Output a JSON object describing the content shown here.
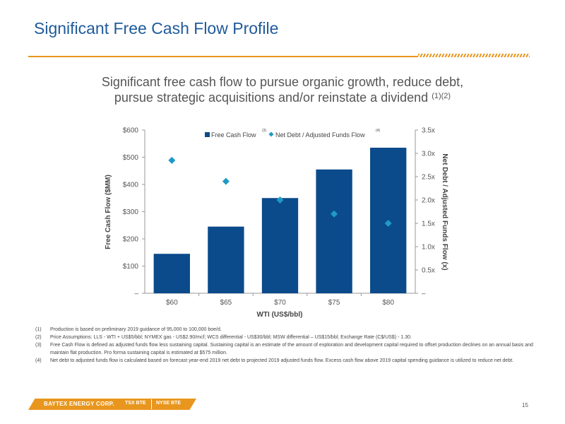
{
  "page": {
    "title": "Significant Free Cash Flow Profile",
    "headline_line1": "Significant free cash flow to pursue organic growth, reduce debt,",
    "headline_line2": "pursue strategic acquisitions and/or reinstate a dividend",
    "headline_sup": "(1)(2)",
    "page_number": "15"
  },
  "footer": {
    "company": "BAYTEX ENERGY CORP.",
    "ticker_tsx": "TSX BTE",
    "ticker_nyse": "NYSE BTE",
    "accent_color": "#E8961E"
  },
  "footnotes": [
    {
      "num": "(1)",
      "text": "Production is based on preliminary 2019 guidance of 95,000 to 100,000 boe/d."
    },
    {
      "num": "(2)",
      "text": "Price Assumptions: LLS - WTI + US$5/bbl; NYMEX gas - US$2.90/mcf; WCS differential - US$30/bbl; MSW differential – US$15/bbl; Exchange Rate (C$/US$) - 1.30."
    },
    {
      "num": "(3)",
      "text": "Free Cash Flow is defined as adjusted funds flow less sustaining capital. Sustaining capital is an estimate of the amount of exploration and development capital required to offset production declines on an annual basis and maintain flat production. Pro forma sustaining capital is estimated at $575 million."
    },
    {
      "num": "(4)",
      "text": "Net debt to adjusted funds flow is calculated based on forecast year-end 2019 net debt to projected 2019 adjusted funds flow. Excess cash flow above 2019 capital spending guidance is utilized to reduce net debt."
    }
  ],
  "chart_data": {
    "type": "bar",
    "categories": [
      "$60",
      "$65",
      "$70",
      "$75",
      "$80"
    ],
    "series": [
      {
        "name": "Free Cash Flow",
        "type": "bar",
        "axis": "left",
        "values": [
          145,
          245,
          350,
          455,
          535
        ],
        "color": "#0B4A8B",
        "sup": "(3)"
      },
      {
        "name": "Net Debt / Adjusted Funds Flow",
        "type": "scatter",
        "marker": "diamond",
        "axis": "right",
        "values": [
          2.85,
          2.4,
          2.0,
          1.7,
          1.5
        ],
        "color": "#1E9AC5",
        "sup": "(4)"
      }
    ],
    "xlabel": "WTI (US$/bbl)",
    "ylabel": "Free Cash Flow ($MM)",
    "y2label": "Net Debt / Adjusted Funds Flow (x)",
    "ylim": [
      0,
      600
    ],
    "y2lim": [
      0,
      3.5
    ],
    "yticks": [
      "–",
      "$100",
      "$200",
      "$300",
      "$400",
      "$500",
      "$600"
    ],
    "y2ticks": [
      "–",
      "0.5x",
      "1.0x",
      "1.5x",
      "2.0x",
      "2.5x",
      "3.0x",
      "3.5x"
    ],
    "grid": false,
    "legend": "top-center"
  }
}
